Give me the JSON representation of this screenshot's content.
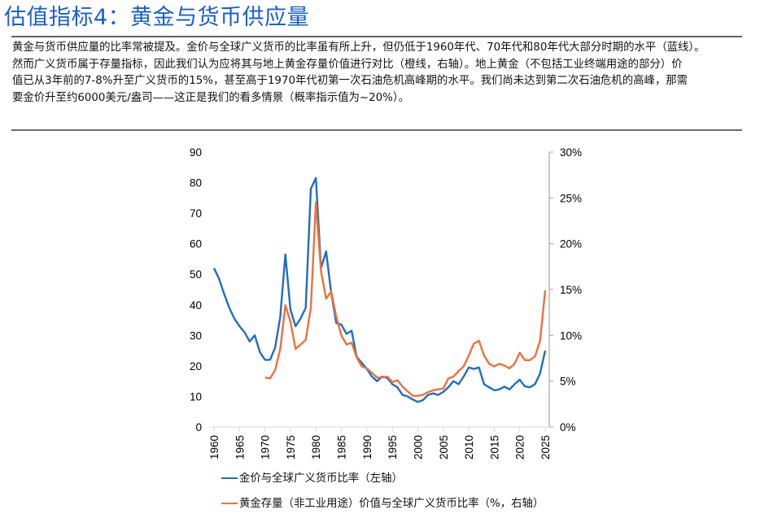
{
  "header": {
    "title": "估值指标4：黄金与货币供应量"
  },
  "description": {
    "lines": [
      "黄金与货币供应量的比率常被提及。金价与全球广义货币的比率虽有所上升，但仍低于1960年代、70年代和80年代大部分时期的水平（蓝线）。",
      "然而广义货币属于存量指标，因此我们认为应将其与地上黄金存量价值进行对比（橙线，右轴）。地上黄金（不包括工业终端用途的部分）价",
      "值已从3年前的7-8%升至广义货币的15%，甚至高于1970年代初第一次石油危机高峰期的水平。我们尚未达到第二次石油危机的高峰，那需",
      "要金价升至约6000美元/盎司——这正是我们的看多情景（概率指示值为~20%）。"
    ]
  },
  "chart_data": {
    "type": "line",
    "title": "",
    "xlabel": "",
    "ylabel": "",
    "x_ticks": [
      "1960",
      "1965",
      "1970",
      "1975",
      "1980",
      "1985",
      "1990",
      "1995",
      "2000",
      "2005",
      "2010",
      "2015",
      "2020",
      "2025"
    ],
    "xlim": [
      1960,
      2025
    ],
    "y_left": {
      "lim": [
        0,
        90
      ],
      "ticks": [
        "0",
        "10",
        "20",
        "30",
        "40",
        "50",
        "60",
        "70",
        "80",
        "90"
      ]
    },
    "y_right": {
      "lim": [
        0,
        30
      ],
      "ticks": [
        "0%",
        "5%",
        "10%",
        "15%",
        "20%",
        "25%",
        "30%"
      ]
    },
    "grid": false,
    "legend_position": "bottom-left",
    "series": [
      {
        "name": "金价与全球广义货币比率（左轴）",
        "axis": "left",
        "color": "#1f6fbf",
        "x": [
          1960,
          1961,
          1962,
          1963,
          1964,
          1965,
          1966,
          1967,
          1968,
          1969,
          1970,
          1971,
          1972,
          1973,
          1974,
          1975,
          1976,
          1977,
          1978,
          1979,
          1980,
          1981,
          1982,
          1983,
          1984,
          1985,
          1986,
          1987,
          1988,
          1989,
          1990,
          1991,
          1992,
          1993,
          1994,
          1995,
          1996,
          1997,
          1998,
          1999,
          2000,
          2001,
          2002,
          2003,
          2004,
          2005,
          2006,
          2007,
          2008,
          2009,
          2010,
          2011,
          2012,
          2013,
          2014,
          2015,
          2016,
          2017,
          2018,
          2019,
          2020,
          2021,
          2022,
          2023,
          2024,
          2025
        ],
        "values": [
          52,
          48.5,
          43.5,
          39,
          35.5,
          33,
          31,
          28,
          30,
          24.5,
          22,
          22,
          26,
          36,
          56.5,
          38.5,
          33,
          35.5,
          39,
          78,
          81.5,
          52,
          57.5,
          44,
          34,
          33.5,
          30.5,
          31.5,
          23,
          21,
          19,
          16.5,
          15,
          16.5,
          16,
          14,
          13,
          10.5,
          10,
          9,
          8.2,
          8.8,
          10.5,
          11,
          10.5,
          11.5,
          13,
          15,
          14,
          16.5,
          19.5,
          19,
          19.5,
          14,
          13,
          12,
          12.3,
          13.2,
          12.3,
          14,
          15.5,
          13.3,
          13,
          14,
          17.5,
          25
        ]
      },
      {
        "name": "黄金存量（非工业用途）价值与全球广义货币比率（%，右轴）",
        "axis": "right",
        "color": "#f07038",
        "x": [
          1970,
          1971,
          1972,
          1973,
          1974,
          1975,
          1976,
          1977,
          1978,
          1979,
          1980,
          1981,
          1982,
          1983,
          1984,
          1985,
          1986,
          1987,
          1988,
          1989,
          1990,
          1991,
          1992,
          1993,
          1994,
          1995,
          1996,
          1997,
          1998,
          1999,
          2000,
          2001,
          2002,
          2003,
          2004,
          2005,
          2006,
          2007,
          2008,
          2009,
          2010,
          2011,
          2012,
          2013,
          2014,
          2015,
          2016,
          2017,
          2018,
          2019,
          2020,
          2021,
          2022,
          2023,
          2024,
          2025
        ],
        "values": [
          5.4,
          5.3,
          6.2,
          8.5,
          13.3,
          11.5,
          8.5,
          9,
          9.5,
          13,
          24.5,
          17,
          14,
          14.8,
          12,
          10,
          9,
          9.2,
          7.6,
          6.6,
          6.4,
          5.9,
          5.4,
          5.4,
          5.5,
          4.9,
          5.1,
          4.4,
          3.9,
          3.4,
          3.4,
          3.5,
          3.8,
          4.0,
          4.1,
          4.2,
          5.3,
          5.5,
          6.1,
          6.6,
          7.8,
          9.1,
          9.4,
          7.8,
          6.9,
          6.6,
          6.9,
          6.7,
          6.4,
          6.9,
          8.1,
          7.3,
          7.3,
          7.7,
          9.4,
          14.9
        ]
      }
    ]
  }
}
